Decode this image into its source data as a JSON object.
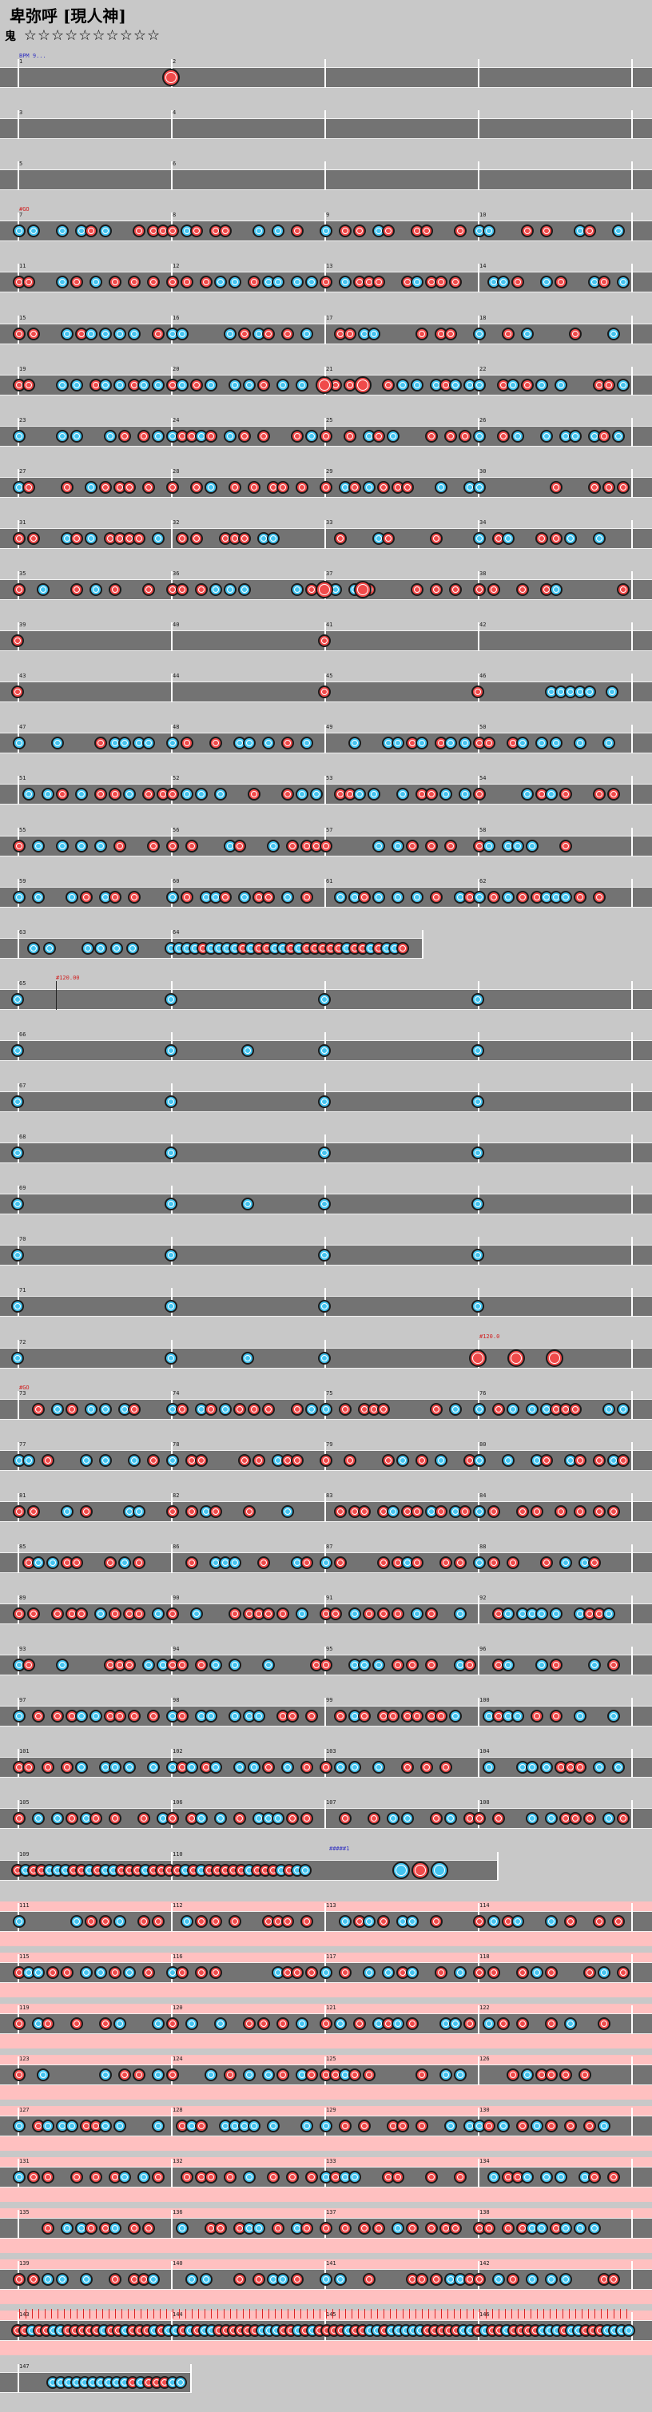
{
  "header": {
    "title": "卑弥呼 [現人神]",
    "difficulty_label": "鬼",
    "stars": "☆☆☆☆☆☆☆☆☆☆"
  },
  "legend_colors": {
    "don": "#f04a4a",
    "ka": "#44c4f0",
    "lane": "#737373",
    "gogo": "#ffc0c0",
    "background": "#c8c8c8"
  },
  "events": {
    "bpm_start": "BPM 9...",
    "gogo_on": "#GO",
    "bpm_change_1": "#120.00",
    "scroll_change": "#120.0",
    "gogo_on_2": "#GO",
    "bpm_change_2": "#####1"
  },
  "rows": [
    {
      "measures": [
        "1",
        "2"
      ],
      "pattern": "s1"
    },
    {
      "measures": [
        "3",
        "4"
      ],
      "pattern": "empty"
    },
    {
      "measures": [
        "5",
        "6"
      ],
      "pattern": "empty"
    },
    {
      "measures": [
        "7",
        "8",
        "9",
        "10"
      ],
      "pattern": "dense"
    },
    {
      "measures": [
        "11",
        "12",
        "13",
        "14"
      ],
      "pattern": "dense"
    },
    {
      "measures": [
        "15",
        "16",
        "17",
        "18"
      ],
      "pattern": "dense"
    },
    {
      "measures": [
        "19",
        "20",
        "21",
        "22"
      ],
      "pattern": "dense2"
    },
    {
      "measures": [
        "23",
        "24",
        "25",
        "26"
      ],
      "pattern": "dense"
    },
    {
      "measures": [
        "27",
        "28",
        "29",
        "30"
      ],
      "pattern": "dense"
    },
    {
      "measures": [
        "31",
        "32",
        "33",
        "34"
      ],
      "pattern": "dense"
    },
    {
      "measures": [
        "35",
        "36",
        "37",
        "38"
      ],
      "pattern": "dense2"
    },
    {
      "measures": [
        "39",
        "40",
        "41",
        "42"
      ],
      "pattern": "sparse"
    },
    {
      "measures": [
        "43",
        "44",
        "45",
        "46"
      ],
      "pattern": "sparse2"
    },
    {
      "measures": [
        "47",
        "48",
        "49",
        "50"
      ],
      "pattern": "dense"
    },
    {
      "measures": [
        "51",
        "52",
        "53",
        "54"
      ],
      "pattern": "dense"
    },
    {
      "measures": [
        "55",
        "56",
        "57",
        "58"
      ],
      "pattern": "dense"
    },
    {
      "measures": [
        "59",
        "60",
        "61",
        "62"
      ],
      "pattern": "dense"
    },
    {
      "measures": [
        "63",
        "64"
      ],
      "pattern": "short"
    },
    {
      "measures": [
        "65",
        "",
        "",
        ""
      ],
      "pattern": "quarter"
    },
    {
      "measures": [
        "66",
        "",
        "",
        ""
      ],
      "pattern": "quarter"
    },
    {
      "measures": [
        "67",
        "",
        "",
        ""
      ],
      "pattern": "quarter"
    },
    {
      "measures": [
        "68",
        "",
        "",
        ""
      ],
      "pattern": "quarter"
    },
    {
      "measures": [
        "69",
        "",
        "",
        ""
      ],
      "pattern": "quarter"
    },
    {
      "measures": [
        "70",
        "",
        "",
        ""
      ],
      "pattern": "quarter"
    },
    {
      "measures": [
        "71",
        "",
        "",
        ""
      ],
      "pattern": "quarter"
    },
    {
      "measures": [
        "72",
        "",
        "",
        ""
      ],
      "pattern": "quarter_end"
    },
    {
      "measures": [
        "73",
        "74",
        "75",
        "76"
      ],
      "pattern": "dense"
    },
    {
      "measures": [
        "77",
        "78",
        "79",
        "80"
      ],
      "pattern": "dense"
    },
    {
      "measures": [
        "81",
        "82",
        "83",
        "84"
      ],
      "pattern": "dense"
    },
    {
      "measures": [
        "85",
        "86",
        "87",
        "88"
      ],
      "pattern": "dense"
    },
    {
      "measures": [
        "89",
        "90",
        "91",
        "92"
      ],
      "pattern": "dense"
    },
    {
      "measures": [
        "93",
        "94",
        "95",
        "96"
      ],
      "pattern": "dense"
    },
    {
      "measures": [
        "97",
        "98",
        "99",
        "100"
      ],
      "pattern": "dense"
    },
    {
      "measures": [
        "101",
        "102",
        "103",
        "104"
      ],
      "pattern": "dense"
    },
    {
      "measures": [
        "105",
        "106",
        "107",
        "108"
      ],
      "pattern": "dense"
    },
    {
      "measures": [
        "109",
        "110"
      ],
      "pattern": "short2"
    },
    {
      "measures": [
        "111",
        "112",
        "113",
        "114"
      ],
      "pattern": "dense"
    },
    {
      "measures": [
        "115",
        "116",
        "117",
        "118"
      ],
      "pattern": "dense"
    },
    {
      "measures": [
        "119",
        "120",
        "121",
        "122"
      ],
      "pattern": "dense"
    },
    {
      "measures": [
        "123",
        "124",
        "125",
        "126"
      ],
      "pattern": "dense"
    },
    {
      "measures": [
        "127",
        "128",
        "129",
        "130"
      ],
      "pattern": "dense"
    },
    {
      "measures": [
        "131",
        "132",
        "133",
        "134"
      ],
      "pattern": "dense"
    },
    {
      "measures": [
        "135",
        "136",
        "137",
        "138"
      ],
      "pattern": "dense"
    },
    {
      "measures": [
        "139",
        "140",
        "141",
        "142"
      ],
      "pattern": "dense"
    },
    {
      "measures": [
        "143",
        "144",
        "145",
        "146"
      ],
      "pattern": "final"
    },
    {
      "measures": [
        "147"
      ],
      "pattern": "last"
    }
  ]
}
